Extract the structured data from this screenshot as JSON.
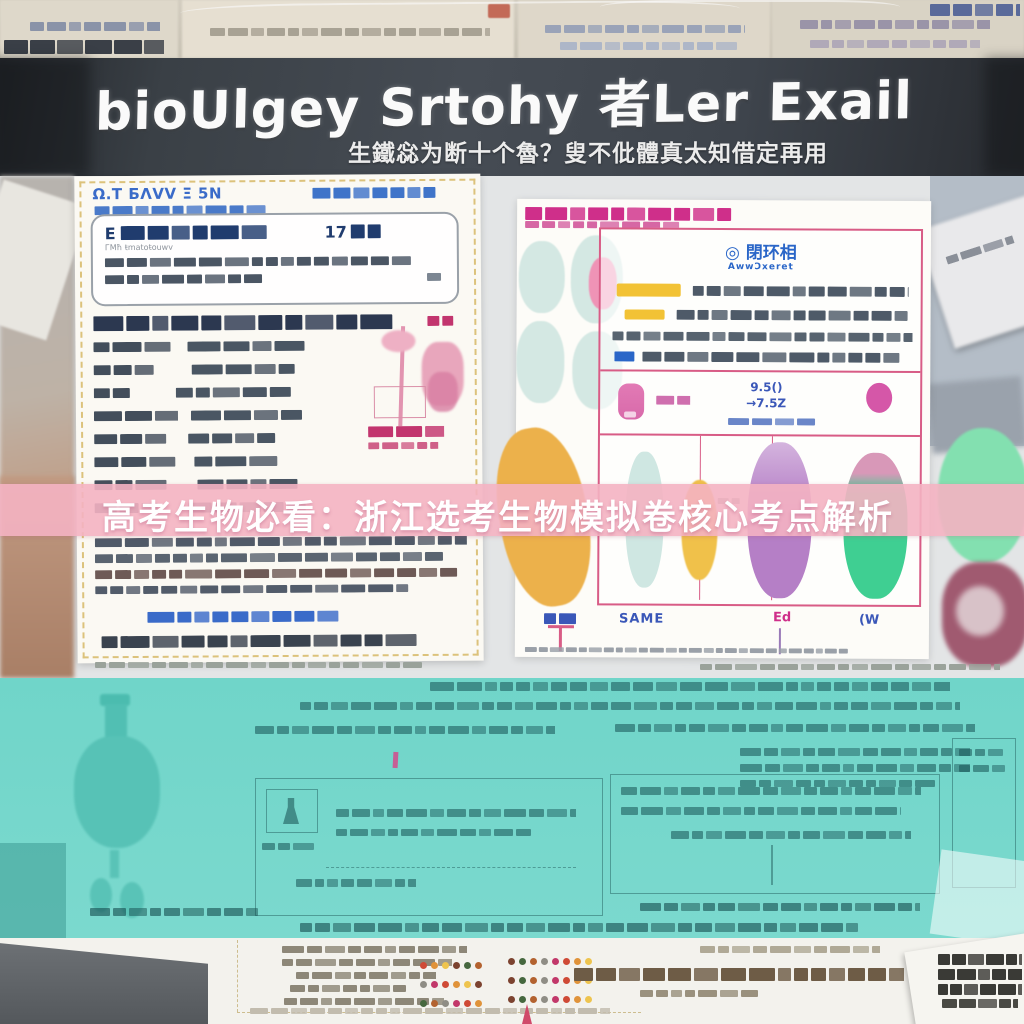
{
  "header": {
    "title": "bioUlgey Srtohy 者Ler Exail",
    "subtitle": "生鐵惢为断十个魯？叟不仳體真太知借定再用"
  },
  "banner": {
    "text": "高考生物必看：浙江选考生物模拟卷核心考点解析"
  },
  "left_panel": {
    "header_left": "Ω.T БΛVV Ξ 5N",
    "callout_lead": "E",
    "callout_number": "17",
    "callout_footnote": "ГМħ ŧmatoŧouwv"
  },
  "right_panel": {
    "card_title": "◎ 閉环相",
    "card_subtitle": "AwwƆxeret",
    "value_top": "9.5()",
    "value_bottom": "→7.5Z",
    "label_same": "SAME",
    "label_ed": "Ed",
    "label_w": "(W"
  },
  "bottom_strip": {
    "dot_colors": [
      "#cf4a36",
      "#e0933a",
      "#eec44e",
      "#7c4330",
      "#46683f",
      "#b3622f",
      "#8f8d85",
      "#c2386a"
    ]
  },
  "colors": {
    "banner_bg": "#f4b2c2",
    "teal_overlay": "#74d6cb",
    "header_bg": "#3a4046",
    "grid_pink": "#d85c86",
    "magenta": "#cf2f8a",
    "blue": "#3a6bc9"
  }
}
